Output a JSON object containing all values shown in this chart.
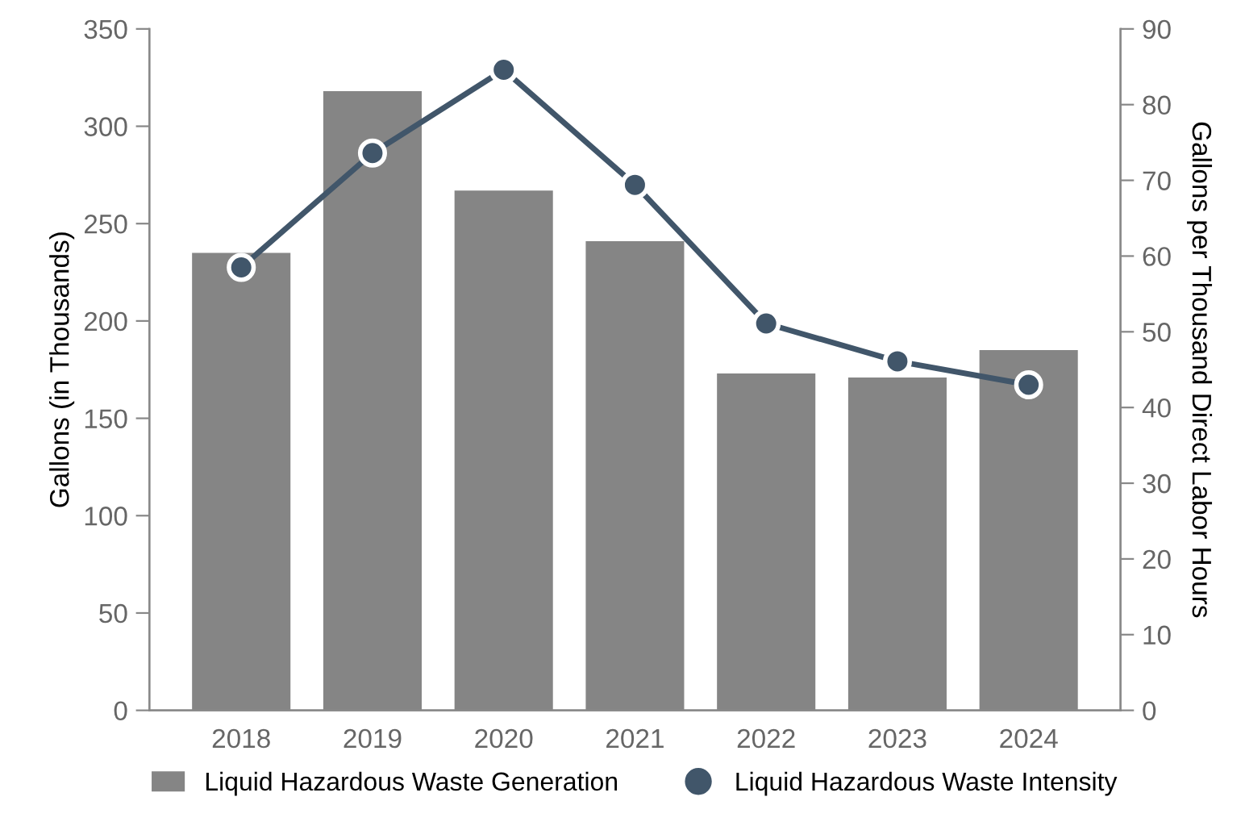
{
  "chart_data": {
    "type": "bar",
    "categories": [
      "2018",
      "2019",
      "2020",
      "2021",
      "2022",
      "2023",
      "2024"
    ],
    "series": [
      {
        "name": "Liquid Hazardous Waste Generation",
        "color": "#858585",
        "values": [
          235,
          318,
          267,
          241,
          173,
          171,
          185
        ]
      },
      {
        "name": "Liquid Hazardous Waste Intensity",
        "type": "line",
        "axis": "y2",
        "color": "#41566a",
        "marker": "circle",
        "values": [
          58.5,
          73.6,
          84.6,
          69.4,
          51.1,
          46.1,
          43.0
        ]
      }
    ],
    "ylabel": "Gallons (in Thousands)",
    "y2label": "Gallons per Thousand Direct Labor Hours",
    "ylim": [
      0,
      350
    ],
    "yticks": [
      0,
      50,
      100,
      150,
      200,
      250,
      300,
      350
    ],
    "y2lim": [
      0,
      90
    ],
    "y2ticks": [
      0,
      10,
      20,
      30,
      40,
      50,
      60,
      70,
      80,
      90
    ],
    "grid": false,
    "legend": "bottom"
  }
}
